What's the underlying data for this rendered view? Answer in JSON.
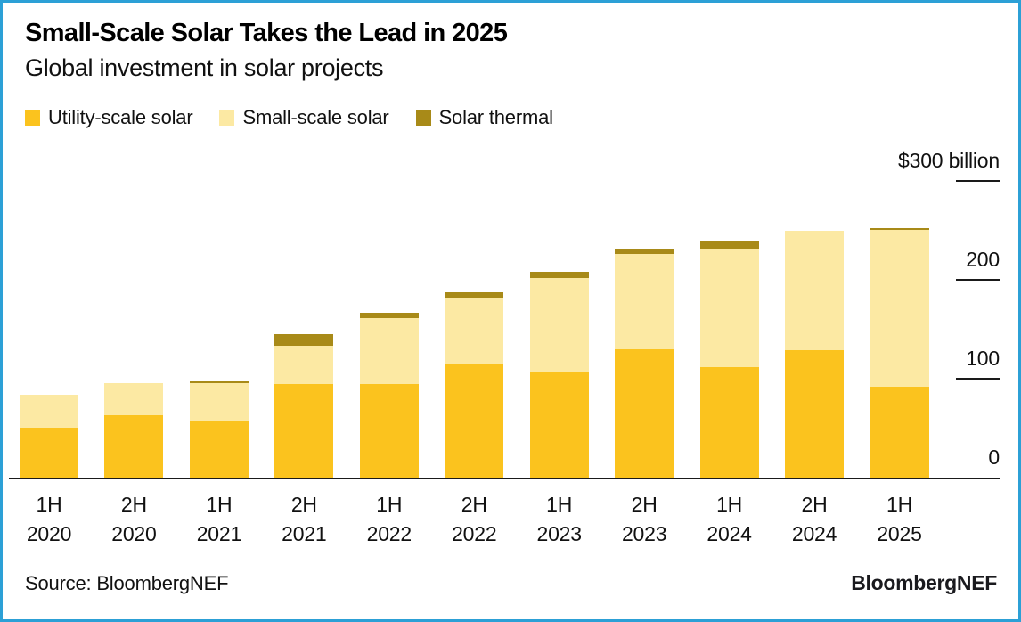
{
  "header": {
    "title": "Small-Scale Solar Takes the Lead in 2025",
    "subtitle": "Global investment in solar projects"
  },
  "footer": {
    "source": "Source: BloombergNEF",
    "logo": "BloombergNEF"
  },
  "colors": {
    "frame_border": "#2CA0D6",
    "axis_line": "#1a1a1a",
    "text": "#111111",
    "utility_scale": "#FBC31E",
    "small_scale": "#FCE9A3",
    "solar_thermal": "#A88A18"
  },
  "chart_data": {
    "type": "bar",
    "stacked": true,
    "title": "Small-Scale Solar Takes the Lead in 2025",
    "subtitle": "Global investment in solar projects",
    "unit": "$ billion",
    "ylim": [
      0,
      300
    ],
    "grid": false,
    "legend_position": "top-left",
    "y_axis": {
      "side": "right",
      "tick_values": [
        300,
        200,
        100,
        0
      ],
      "tick_labels": [
        "$300 billion",
        "200",
        "100",
        "0"
      ]
    },
    "categories": [
      "1H 2020",
      "2H 2020",
      "1H 2021",
      "2H 2021",
      "1H 2022",
      "2H 2022",
      "1H 2023",
      "2H 2023",
      "1H 2024",
      "2H 2024",
      "1H 2025"
    ],
    "series": [
      {
        "name": "Utility-scale solar",
        "color": "#FBC31E",
        "values": [
          50,
          63,
          57,
          95,
          95,
          114,
          107,
          130,
          112,
          129,
          92
        ]
      },
      {
        "name": "Small-scale solar",
        "color": "#FCE9A3",
        "values": [
          33,
          32,
          39,
          39,
          67,
          68,
          95,
          96,
          120,
          121,
          159
        ]
      },
      {
        "name": "Solar thermal",
        "color": "#A88A18",
        "values": [
          0,
          0,
          2,
          12,
          5,
          5,
          6,
          5,
          8,
          0,
          2
        ]
      }
    ],
    "totals": [
      83,
      95,
      98,
      146,
      167,
      187,
      208,
      231,
      240,
      250,
      253
    ]
  }
}
